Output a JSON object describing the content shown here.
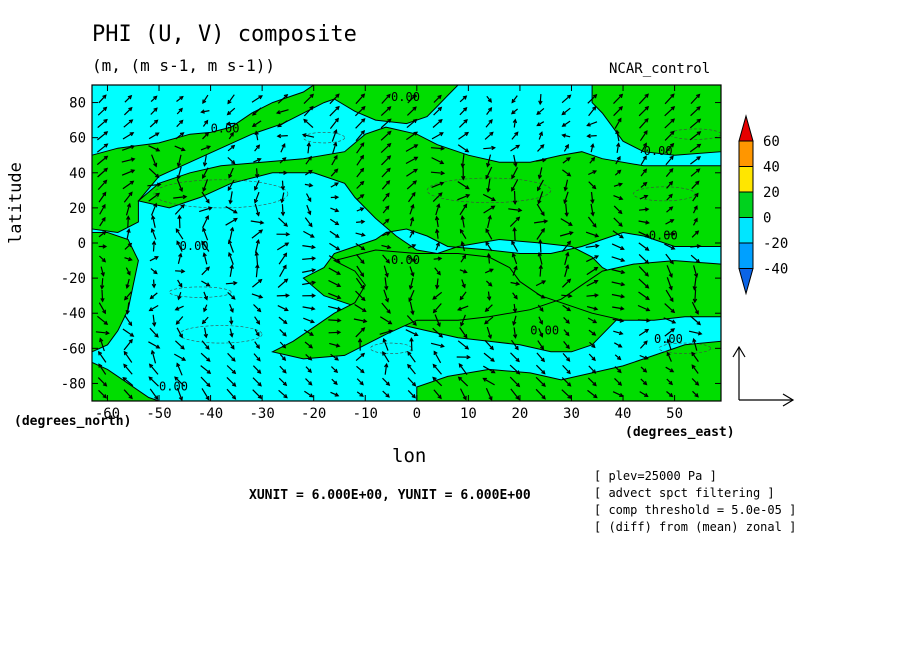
{
  "chart_data": {
    "type": "heatmap",
    "title": "PHI (U, V) composite",
    "subtitle": "(m, (m s-1, m s-1))",
    "run": "NCAR_control",
    "xlabel": "lon",
    "ylabel": "latitude",
    "x_unit": "(degrees_east)",
    "y_unit": "(degrees_north)",
    "xlim": [
      -63,
      59
    ],
    "ylim": [
      -90,
      90
    ],
    "x_ticks": [
      -60,
      -50,
      -40,
      -30,
      -20,
      -10,
      0,
      10,
      20,
      30,
      40,
      50
    ],
    "y_ticks": [
      -80,
      -60,
      -40,
      -20,
      0,
      20,
      40,
      60,
      80
    ],
    "contour_label": "0.00",
    "colorbar": {
      "levels": [
        -40,
        -20,
        0,
        20,
        40,
        60
      ],
      "colors": [
        "#0a64e6",
        "#00a0ff",
        "#00e6ff",
        "#00d21e",
        "#ffe600",
        "#ff9600",
        "#e60000"
      ]
    },
    "fill_colors": {
      "negative": "#00ffff",
      "positive": "#00dd00"
    },
    "vector_units": "XUNIT = 6.000E+00, YUNIT = 6.000E+00",
    "notes": [
      "[ plev=25000 Pa ]",
      "[ advect spct filtering ]",
      "[ comp threshold = 5.0e-05 ]",
      "[ (diff) from (mean) zonal ]"
    ]
  }
}
